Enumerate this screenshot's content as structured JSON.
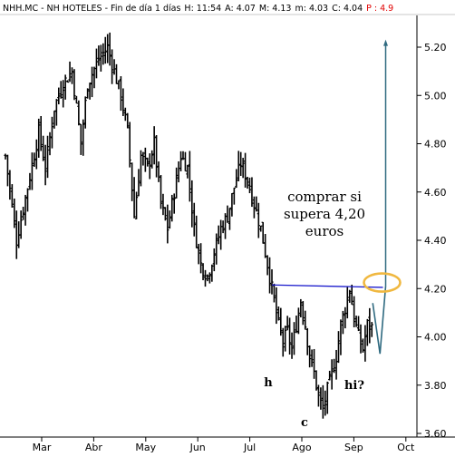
{
  "chart_data": {
    "type": "bar",
    "style": "ohlc",
    "header": {
      "symbol": "NHH.MC",
      "sep1": " - ",
      "name": "NH HOTELES",
      "sep2": " - ",
      "timeframe": "Fin de día 1 días",
      "high_label": "H: 11:54",
      "open_label": "A: 4.07",
      "mid_label": "M: 4.13",
      "low_label": "m: 4.03",
      "close_label": "C: 4.04",
      "p_label": "P : 4.9"
    },
    "x_axis": {
      "months": [
        "Mar",
        "Abr",
        "May",
        "Jun",
        "Jul",
        "Ago",
        "Sep",
        "Oct"
      ]
    },
    "y_axis": {
      "ylim": [
        3.6,
        5.3
      ],
      "ticks": [
        "5.20",
        "5.00",
        "4.80",
        "4.60",
        "4.40",
        "4.20",
        "4.00",
        "3.80",
        "3.60"
      ],
      "grid": false
    },
    "price_path": [
      [
        0,
        4.75
      ],
      [
        5,
        4.4
      ],
      [
        10,
        4.62
      ],
      [
        15,
        4.85
      ],
      [
        18,
        4.7
      ],
      [
        22,
        4.95
      ],
      [
        26,
        5.05
      ],
      [
        30,
        5.1
      ],
      [
        34,
        4.8
      ],
      [
        37,
        5.05
      ],
      [
        42,
        5.15
      ],
      [
        46,
        5.2
      ],
      [
        49,
        5.1
      ],
      [
        52,
        5.0
      ],
      [
        55,
        4.85
      ],
      [
        58,
        4.5
      ],
      [
        61,
        4.75
      ],
      [
        64,
        4.7
      ],
      [
        67,
        4.8
      ],
      [
        70,
        4.55
      ],
      [
        73,
        4.45
      ],
      [
        76,
        4.6
      ],
      [
        79,
        4.75
      ],
      [
        82,
        4.7
      ],
      [
        85,
        4.45
      ],
      [
        88,
        4.3
      ],
      [
        91,
        4.25
      ],
      [
        94,
        4.35
      ],
      [
        97,
        4.45
      ],
      [
        100,
        4.5
      ],
      [
        103,
        4.62
      ],
      [
        106,
        4.72
      ],
      [
        109,
        4.65
      ],
      [
        112,
        4.55
      ],
      [
        115,
        4.45
      ],
      [
        118,
        4.3
      ],
      [
        120,
        4.2
      ],
      [
        123,
        4.05
      ],
      [
        125,
        3.98
      ],
      [
        127,
        4.02
      ],
      [
        129,
        3.95
      ],
      [
        131,
        4.05
      ],
      [
        133,
        4.15
      ],
      [
        135,
        4.05
      ],
      [
        137,
        3.92
      ],
      [
        139,
        3.85
      ],
      [
        141,
        3.75
      ],
      [
        143,
        3.7
      ],
      [
        145,
        3.78
      ],
      [
        147,
        3.85
      ],
      [
        149,
        3.92
      ],
      [
        151,
        4.05
      ],
      [
        153,
        4.12
      ],
      [
        155,
        4.2
      ],
      [
        157,
        4.08
      ],
      [
        159,
        4.0
      ],
      [
        161,
        3.95
      ],
      [
        163,
        4.05
      ],
      [
        165,
        4.04
      ]
    ],
    "resistance": {
      "y": 4.21,
      "x": [
        120,
        170
      ]
    },
    "projection": {
      "dip": 3.93,
      "arrow_target": 5.22
    },
    "annotations": {
      "buy_line1": "comprar si",
      "buy_line2": "supera 4,20",
      "buy_line3": "euros",
      "label_h": "h",
      "label_c": "c",
      "label_hi": "hi?"
    },
    "colors": {
      "bars": "#000000",
      "resistance_line": "#1a1acc",
      "projection_line": "#2f6a80",
      "breakout_ellipse": "#f0b840",
      "header_p_label": "#e00000",
      "axis": "#000000"
    }
  }
}
